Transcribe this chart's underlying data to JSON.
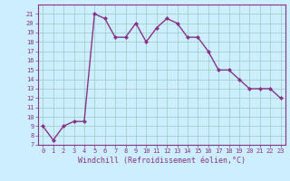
{
  "x": [
    0,
    1,
    2,
    3,
    4,
    5,
    6,
    7,
    8,
    9,
    10,
    11,
    12,
    13,
    14,
    15,
    16,
    17,
    18,
    19,
    20,
    21,
    22,
    23
  ],
  "y": [
    9,
    7.5,
    9,
    9.5,
    9.5,
    21,
    20.5,
    18.5,
    18.5,
    20,
    18,
    19.5,
    20.5,
    20,
    18.5,
    18.5,
    17,
    15,
    15,
    14,
    13,
    13,
    13,
    12
  ],
  "line_color": "#883388",
  "marker": "D",
  "marker_size": 2.0,
  "bg_color": "#cceeff",
  "grid_color": "#99ccbb",
  "xlabel": "Windchill (Refroidissement éolien,°C)",
  "ylim": [
    7,
    22
  ],
  "xlim": [
    -0.5,
    23.5
  ],
  "yticks": [
    7,
    8,
    9,
    10,
    11,
    12,
    13,
    14,
    15,
    16,
    17,
    18,
    19,
    20,
    21
  ],
  "xticks": [
    0,
    1,
    2,
    3,
    4,
    5,
    6,
    7,
    8,
    9,
    10,
    11,
    12,
    13,
    14,
    15,
    16,
    17,
    18,
    19,
    20,
    21,
    22,
    23
  ],
  "tick_color": "#883388",
  "tick_fontsize": 5.0,
  "xlabel_fontsize": 6.0,
  "line_width": 1.0
}
